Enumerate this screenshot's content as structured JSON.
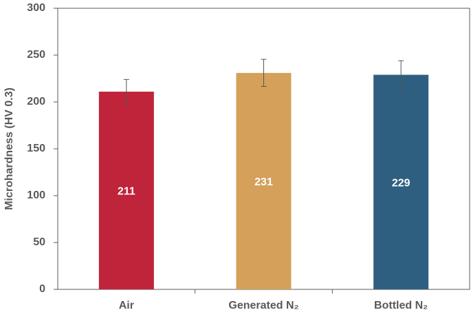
{
  "chart_data": {
    "type": "bar",
    "y_label": "Microhardness (HV 0.3)",
    "categories": [
      "Air",
      "Generated N₂",
      "Bottled N₂"
    ],
    "values": [
      211,
      231,
      229
    ],
    "errors": [
      13,
      14.5,
      15
    ],
    "colors": [
      "#c0243a",
      "#d4a05a",
      "#2e5f80"
    ],
    "ylim": [
      0,
      300
    ],
    "yticks": [
      0,
      50,
      100,
      150,
      200,
      250,
      300
    ]
  }
}
